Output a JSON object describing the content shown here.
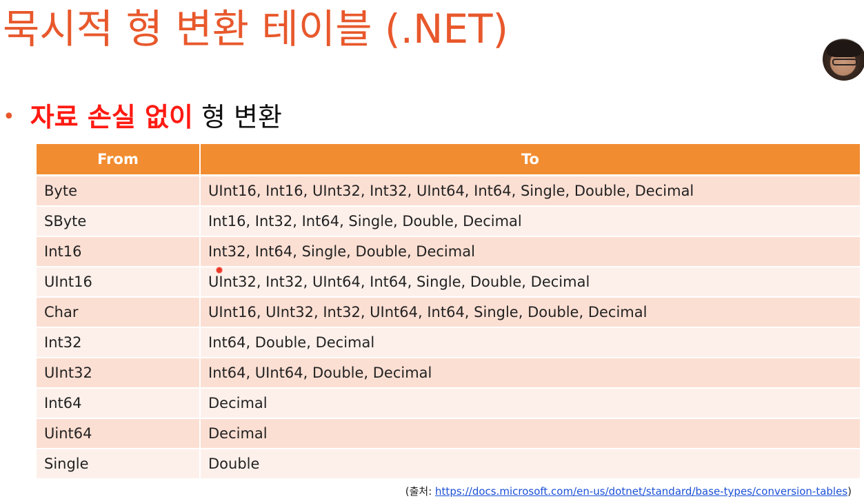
{
  "title": "묵시적 형 변환 테이블 (.NET)",
  "bullet": {
    "symbol": "•",
    "emphasis": "자료 손실 없이",
    "rest": " 형 변환"
  },
  "table": {
    "headers": [
      "From",
      "To"
    ],
    "rows": [
      {
        "from": "Byte",
        "to": "UInt16, Int16, UInt32, Int32, UInt64, Int64, Single, Double, Decimal"
      },
      {
        "from": "SByte",
        "to": "Int16, Int32, Int64, Single, Double, Decimal"
      },
      {
        "from": "Int16",
        "to": "Int32, Int64, Single, Double, Decimal"
      },
      {
        "from": "UInt16",
        "to": "UInt32, Int32, UInt64, Int64, Single, Double, Decimal"
      },
      {
        "from": "Char",
        "to": "UInt16, UInt32, Int32, UInt64, Int64, Single, Double, Decimal"
      },
      {
        "from": "Int32",
        "to": "Int64, Double, Decimal"
      },
      {
        "from": "UInt32",
        "to": "Int64, UInt64, Double, Decimal"
      },
      {
        "from": "Int64",
        "to": "Decimal"
      },
      {
        "from": "Uint64",
        "to": "Decimal"
      },
      {
        "from": "Single",
        "to": "Double"
      }
    ]
  },
  "source": {
    "prefix": "(출처: ",
    "link": "https://docs.microsoft.com/en-us/dotnet/standard/base-types/conversion-tables",
    "suffix": ")"
  },
  "colors": {
    "title": "#e8582c",
    "emphasis": "#ff1a12",
    "header_bg": "#f28c30",
    "row_odd": "#fcdfd3",
    "row_even": "#fdf0ea",
    "link": "#1a4fd6"
  }
}
